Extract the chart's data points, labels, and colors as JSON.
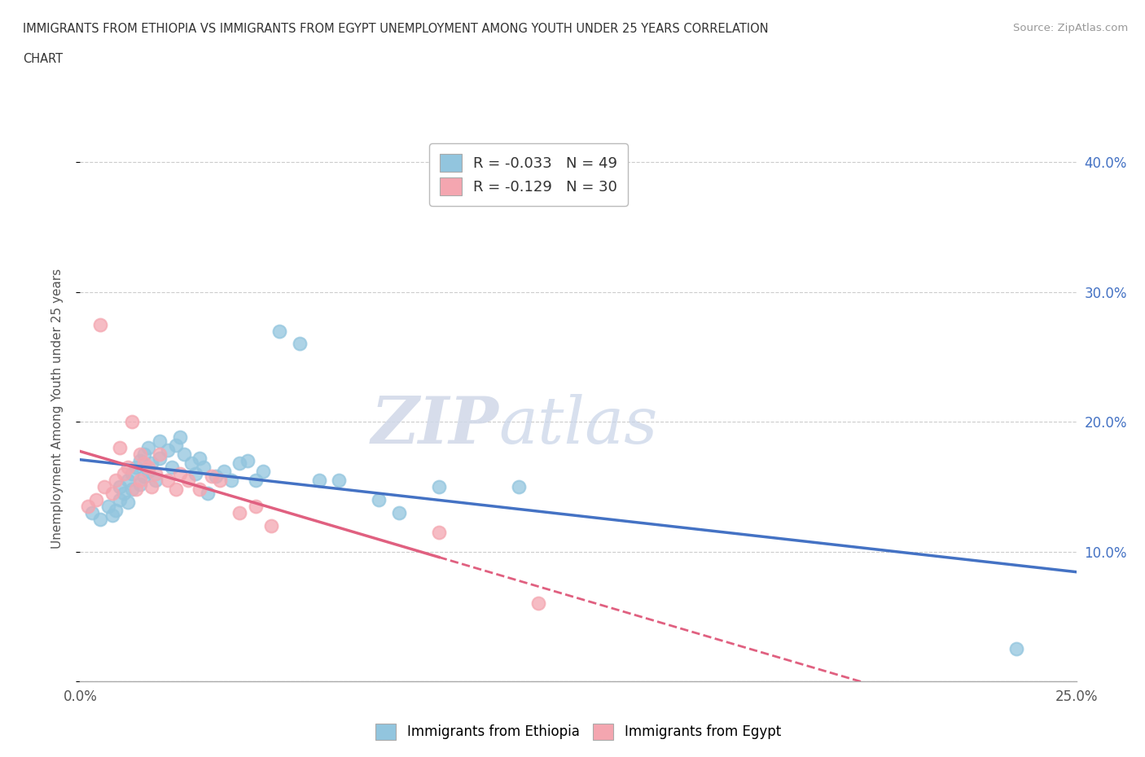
{
  "title_line1": "IMMIGRANTS FROM ETHIOPIA VS IMMIGRANTS FROM EGYPT UNEMPLOYMENT AMONG YOUTH UNDER 25 YEARS CORRELATION",
  "title_line2": "CHART",
  "source": "Source: ZipAtlas.com",
  "ylabel": "Unemployment Among Youth under 25 years",
  "xlim": [
    0.0,
    0.25
  ],
  "ylim": [
    0.0,
    0.42
  ],
  "x_ticks": [
    0.0,
    0.05,
    0.1,
    0.15,
    0.2,
    0.25
  ],
  "x_tick_labels": [
    "0.0%",
    "",
    "",
    "",
    "",
    "25.0%"
  ],
  "y_ticks": [
    0.0,
    0.1,
    0.2,
    0.3,
    0.4
  ],
  "y_tick_labels_right": [
    "",
    "10.0%",
    "20.0%",
    "30.0%",
    "40.0%"
  ],
  "legend_ethiopia": "R = -0.033   N = 49",
  "legend_egypt": "R = -0.129   N = 30",
  "color_ethiopia": "#92C5DE",
  "color_egypt": "#F4A6B0",
  "line_color_ethiopia": "#4472C4",
  "line_color_egypt": "#E06080",
  "watermark_zip": "ZIP",
  "watermark_atlas": "atlas",
  "ethiopia_x": [
    0.003,
    0.005,
    0.007,
    0.008,
    0.009,
    0.01,
    0.01,
    0.011,
    0.012,
    0.012,
    0.013,
    0.013,
    0.014,
    0.015,
    0.015,
    0.016,
    0.016,
    0.017,
    0.017,
    0.018,
    0.019,
    0.02,
    0.02,
    0.022,
    0.023,
    0.024,
    0.025,
    0.026,
    0.028,
    0.029,
    0.03,
    0.031,
    0.032,
    0.034,
    0.036,
    0.038,
    0.04,
    0.042,
    0.044,
    0.046,
    0.05,
    0.055,
    0.06,
    0.065,
    0.075,
    0.08,
    0.09,
    0.11,
    0.235
  ],
  "ethiopia_y": [
    0.13,
    0.125,
    0.135,
    0.128,
    0.132,
    0.14,
    0.15,
    0.145,
    0.138,
    0.155,
    0.148,
    0.16,
    0.165,
    0.152,
    0.17,
    0.158,
    0.175,
    0.162,
    0.18,
    0.168,
    0.155,
    0.172,
    0.185,
    0.178,
    0.165,
    0.182,
    0.188,
    0.175,
    0.168,
    0.16,
    0.172,
    0.165,
    0.145,
    0.158,
    0.162,
    0.155,
    0.168,
    0.17,
    0.155,
    0.162,
    0.27,
    0.26,
    0.155,
    0.155,
    0.14,
    0.13,
    0.15,
    0.15,
    0.025
  ],
  "egypt_x": [
    0.002,
    0.004,
    0.005,
    0.006,
    0.008,
    0.009,
    0.01,
    0.011,
    0.012,
    0.013,
    0.014,
    0.015,
    0.015,
    0.016,
    0.017,
    0.018,
    0.019,
    0.02,
    0.022,
    0.024,
    0.025,
    0.027,
    0.03,
    0.033,
    0.035,
    0.04,
    0.044,
    0.048,
    0.09,
    0.115
  ],
  "egypt_y": [
    0.135,
    0.14,
    0.275,
    0.15,
    0.145,
    0.155,
    0.18,
    0.16,
    0.165,
    0.2,
    0.148,
    0.175,
    0.155,
    0.168,
    0.165,
    0.15,
    0.16,
    0.175,
    0.155,
    0.148,
    0.16,
    0.155,
    0.148,
    0.158,
    0.155,
    0.13,
    0.135,
    0.12,
    0.115,
    0.06
  ]
}
